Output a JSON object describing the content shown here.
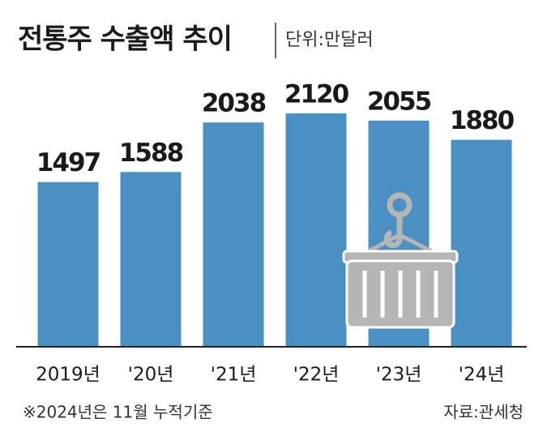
{
  "chart_data": {
    "type": "bar",
    "title": "전통주 수출액 추이",
    "unit": "단위:만달러",
    "categories": [
      "2019년",
      "'20년",
      "'21년",
      "'22년",
      "'23년",
      "'24년"
    ],
    "values": [
      1497,
      1588,
      2038,
      2120,
      2055,
      1880
    ],
    "color": "#4a90c2",
    "note": "※2024년은 11월 누적기준",
    "source": "자료:관세청"
  }
}
